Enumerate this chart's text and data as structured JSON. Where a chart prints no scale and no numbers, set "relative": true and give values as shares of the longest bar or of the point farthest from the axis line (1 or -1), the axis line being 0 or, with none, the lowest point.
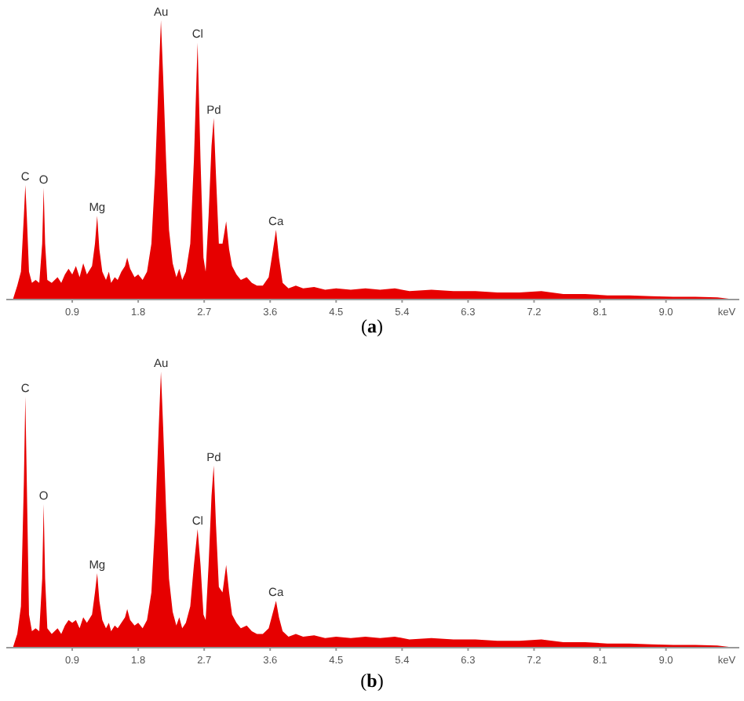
{
  "chart_data": [
    {
      "type": "area",
      "title": "(a)",
      "xlabel": "keV",
      "relative": true,
      "xlim": [
        0,
        10
      ],
      "xticks": [
        0.9,
        1.8,
        2.7,
        3.6,
        4.5,
        5.4,
        6.3,
        7.2,
        8.1,
        {
          "value": 9,
          "label": "9.0"
        }
      ],
      "series": [
        {
          "color": "#e60000",
          "x": [
            0.09,
            0.15,
            0.2,
            0.24,
            0.26,
            0.28,
            0.31,
            0.35,
            0.4,
            0.45,
            0.49,
            0.51,
            0.53,
            0.56,
            0.62,
            0.7,
            0.75,
            0.8,
            0.85,
            0.9,
            0.95,
            1.0,
            1.05,
            1.1,
            1.17,
            1.21,
            1.24,
            1.27,
            1.31,
            1.36,
            1.4,
            1.43,
            1.48,
            1.52,
            1.57,
            1.62,
            1.65,
            1.69,
            1.75,
            1.8,
            1.86,
            1.92,
            1.98,
            2.03,
            2.08,
            2.11,
            2.14,
            2.18,
            2.22,
            2.27,
            2.32,
            2.36,
            2.4,
            2.45,
            2.51,
            2.56,
            2.61,
            2.65,
            2.69,
            2.72,
            2.76,
            2.8,
            2.83,
            2.86,
            2.9,
            2.95,
            3.0,
            3.04,
            3.08,
            3.14,
            3.2,
            3.28,
            3.35,
            3.42,
            3.5,
            3.58,
            3.64,
            3.68,
            3.72,
            3.77,
            3.85,
            3.95,
            4.05,
            4.2,
            4.35,
            4.5,
            4.7,
            4.9,
            5.1,
            5.3,
            5.5,
            5.8,
            6.1,
            6.4,
            6.7,
            7.0,
            7.3,
            7.6,
            7.9,
            8.2,
            8.5,
            8.8,
            9.1,
            9.4,
            9.7,
            9.95
          ],
          "values": [
            0,
            0.05,
            0.1,
            0.3,
            0.41,
            0.3,
            0.1,
            0.06,
            0.07,
            0.06,
            0.2,
            0.4,
            0.2,
            0.07,
            0.06,
            0.08,
            0.06,
            0.09,
            0.11,
            0.09,
            0.12,
            0.08,
            0.13,
            0.09,
            0.12,
            0.2,
            0.3,
            0.18,
            0.1,
            0.07,
            0.1,
            0.06,
            0.08,
            0.07,
            0.1,
            0.12,
            0.15,
            0.11,
            0.08,
            0.09,
            0.07,
            0.1,
            0.2,
            0.45,
            0.8,
            1,
            0.8,
            0.5,
            0.25,
            0.13,
            0.08,
            0.11,
            0.07,
            0.1,
            0.2,
            0.5,
            0.92,
            0.5,
            0.15,
            0.1,
            0.3,
            0.55,
            0.65,
            0.45,
            0.2,
            0.2,
            0.28,
            0.18,
            0.12,
            0.09,
            0.07,
            0.08,
            0.06,
            0.05,
            0.05,
            0.08,
            0.18,
            0.25,
            0.15,
            0.06,
            0.04,
            0.05,
            0.04,
            0.045,
            0.035,
            0.04,
            0.035,
            0.04,
            0.035,
            0.04,
            0.03,
            0.035,
            0.03,
            0.03,
            0.025,
            0.025,
            0.03,
            0.02,
            0.02,
            0.015,
            0.015,
            0.012,
            0.01,
            0.01,
            0.008,
            0
          ]
        }
      ],
      "annotations": [
        {
          "text": "C",
          "x": 0.26,
          "y": 0.41
        },
        {
          "text": "O",
          "x": 0.51,
          "y": 0.4
        },
        {
          "text": "Mg",
          "x": 1.24,
          "y": 0.3
        },
        {
          "text": "Au",
          "x": 2.11,
          "y": 1
        },
        {
          "text": "Cl",
          "x": 2.61,
          "y": 0.92
        },
        {
          "text": "Pd",
          "x": 2.83,
          "y": 0.65
        },
        {
          "text": "Ca",
          "x": 3.68,
          "y": 0.25
        }
      ]
    },
    {
      "type": "area",
      "title": "(b)",
      "xlabel": "keV",
      "relative": true,
      "xlim": [
        0,
        10
      ],
      "xticks": [
        0.9,
        1.8,
        2.7,
        3.6,
        4.5,
        5.4,
        6.3,
        7.2,
        8.1,
        {
          "value": 9,
          "label": "9.0"
        }
      ],
      "series": [
        {
          "color": "#e60000",
          "x": [
            0.09,
            0.15,
            0.2,
            0.24,
            0.26,
            0.28,
            0.31,
            0.35,
            0.4,
            0.45,
            0.49,
            0.51,
            0.53,
            0.56,
            0.62,
            0.7,
            0.75,
            0.8,
            0.85,
            0.9,
            0.95,
            1.0,
            1.05,
            1.1,
            1.17,
            1.21,
            1.24,
            1.27,
            1.31,
            1.36,
            1.4,
            1.43,
            1.48,
            1.52,
            1.57,
            1.62,
            1.65,
            1.69,
            1.75,
            1.8,
            1.86,
            1.92,
            1.98,
            2.03,
            2.08,
            2.11,
            2.14,
            2.18,
            2.22,
            2.27,
            2.32,
            2.36,
            2.4,
            2.45,
            2.51,
            2.56,
            2.61,
            2.65,
            2.69,
            2.72,
            2.76,
            2.8,
            2.83,
            2.86,
            2.9,
            2.95,
            3.0,
            3.04,
            3.08,
            3.14,
            3.2,
            3.28,
            3.35,
            3.42,
            3.5,
            3.58,
            3.64,
            3.68,
            3.72,
            3.77,
            3.85,
            3.95,
            4.05,
            4.2,
            4.35,
            4.5,
            4.7,
            4.9,
            5.1,
            5.3,
            5.5,
            5.8,
            6.1,
            6.4,
            6.7,
            7.0,
            7.3,
            7.6,
            7.9,
            8.2,
            8.5,
            8.8,
            9.1,
            9.4,
            9.7,
            9.95
          ],
          "values": [
            0,
            0.05,
            0.15,
            0.6,
            0.91,
            0.6,
            0.12,
            0.06,
            0.07,
            0.06,
            0.25,
            0.52,
            0.25,
            0.07,
            0.05,
            0.07,
            0.05,
            0.08,
            0.1,
            0.09,
            0.1,
            0.07,
            0.11,
            0.09,
            0.12,
            0.2,
            0.27,
            0.17,
            0.1,
            0.07,
            0.09,
            0.06,
            0.08,
            0.07,
            0.09,
            0.11,
            0.14,
            0.1,
            0.08,
            0.09,
            0.07,
            0.1,
            0.2,
            0.45,
            0.8,
            1,
            0.8,
            0.5,
            0.25,
            0.13,
            0.08,
            0.11,
            0.07,
            0.09,
            0.15,
            0.3,
            0.43,
            0.3,
            0.12,
            0.1,
            0.3,
            0.55,
            0.66,
            0.45,
            0.22,
            0.2,
            0.3,
            0.2,
            0.12,
            0.09,
            0.07,
            0.08,
            0.06,
            0.05,
            0.05,
            0.07,
            0.13,
            0.17,
            0.11,
            0.06,
            0.04,
            0.05,
            0.04,
            0.045,
            0.035,
            0.04,
            0.035,
            0.04,
            0.035,
            0.04,
            0.03,
            0.035,
            0.03,
            0.03,
            0.025,
            0.025,
            0.03,
            0.02,
            0.02,
            0.015,
            0.015,
            0.012,
            0.01,
            0.01,
            0.008,
            0
          ]
        }
      ],
      "annotations": [
        {
          "text": "C",
          "x": 0.26,
          "y": 0.91
        },
        {
          "text": "O",
          "x": 0.51,
          "y": 0.52
        },
        {
          "text": "Mg",
          "x": 1.24,
          "y": 0.27
        },
        {
          "text": "Au",
          "x": 2.11,
          "y": 1
        },
        {
          "text": "Cl",
          "x": 2.61,
          "y": 0.43
        },
        {
          "text": "Pd",
          "x": 2.83,
          "y": 0.66
        },
        {
          "text": "Ca",
          "x": 3.68,
          "y": 0.17
        }
      ]
    }
  ]
}
